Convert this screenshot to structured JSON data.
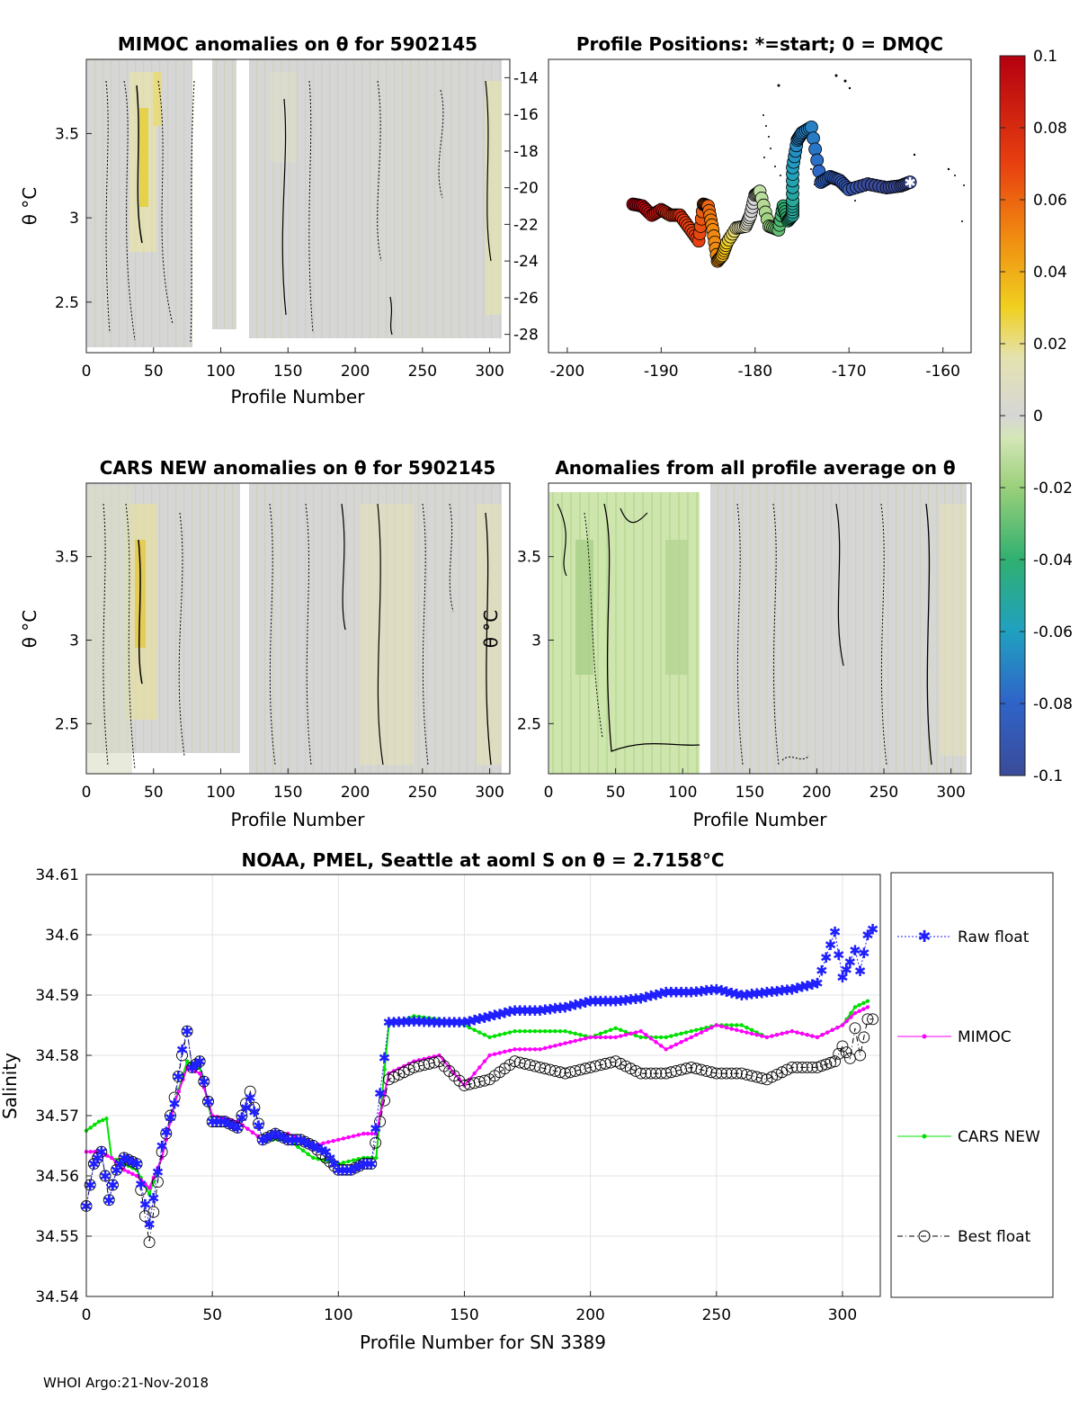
{
  "colorbar": {
    "ticks": [
      "0.1",
      "0.08",
      "0.06",
      "0.04",
      "0.02",
      "0",
      "-0.02",
      "-0.04",
      "-0.06",
      "-0.08",
      "-0.1"
    ],
    "range": [
      -0.1,
      0.1
    ]
  },
  "panels": {
    "mimoc": {
      "title": "MIMOC anomalies on θ  for 5902145",
      "xlabel": "Profile Number",
      "ylabel": "θ °C",
      "xticks": [
        "0",
        "50",
        "100",
        "150",
        "200",
        "250",
        "300"
      ],
      "yticks": [
        "3.5",
        "3",
        "2.5"
      ]
    },
    "positions": {
      "title": "Profile Positions: *=start; 0 = DMQC",
      "xticks": [
        "-200",
        "-190",
        "-180",
        "-170",
        "-160"
      ],
      "yticks": [
        "-14",
        "-16",
        "-18",
        "-20",
        "-22",
        "-24",
        "-26",
        "-28"
      ]
    },
    "cars": {
      "title": "CARS NEW anomalies on θ for 5902145",
      "xlabel": "Profile Number",
      "ylabel": "θ °C",
      "xticks": [
        "0",
        "50",
        "100",
        "150",
        "200",
        "250",
        "300"
      ],
      "yticks": [
        "3.5",
        "3",
        "2.5"
      ]
    },
    "allavg": {
      "title": "Anomalies from all profile average on θ",
      "xlabel": "Profile Number",
      "ylabel": "θ °C",
      "xticks": [
        "0",
        "50",
        "100",
        "150",
        "200",
        "250",
        "300"
      ],
      "yticks": [
        "3.5",
        "3",
        "2.5"
      ]
    },
    "salinity": {
      "title": "NOAA, PMEL, Seattle at aoml S on θ = 2.7158°C",
      "xlabel": "Profile Number for SN 3389",
      "ylabel": "Salinity",
      "xticks": [
        "0",
        "50",
        "100",
        "150",
        "200",
        "250",
        "300"
      ],
      "yticks": [
        "34.61",
        "34.6",
        "34.59",
        "34.58",
        "34.57",
        "34.56",
        "34.55",
        "34.54"
      ]
    }
  },
  "legend": {
    "raw": "Raw float",
    "mimoc": "MIMOC",
    "cars": "CARS NEW",
    "best": "Best float"
  },
  "colors": {
    "raw": "#1f1fff",
    "mimoc": "#ff00ff",
    "cars": "#00e000",
    "best": "#000000"
  },
  "footer": "WHOI Argo:21-Nov-2018",
  "chart_data": [
    {
      "type": "line",
      "title": "NOAA, PMEL, Seattle at aoml S on θ = 2.7158°C",
      "xlabel": "Profile Number for SN 3389",
      "ylabel": "Salinity",
      "xlim": [
        0,
        315
      ],
      "ylim": [
        34.54,
        34.61
      ],
      "grid": true,
      "legend_position": "right",
      "series": [
        {
          "name": "Raw float",
          "x": [
            0,
            3,
            6,
            9,
            12,
            15,
            20,
            25,
            30,
            35,
            38,
            40,
            42,
            45,
            50,
            55,
            60,
            65,
            70,
            75,
            80,
            85,
            90,
            95,
            100,
            105,
            110,
            113,
            120,
            130,
            140,
            150,
            160,
            170,
            180,
            190,
            200,
            210,
            220,
            230,
            240,
            250,
            260,
            270,
            280,
            290,
            297,
            300,
            303,
            305,
            307,
            310,
            312
          ],
          "y": [
            34.555,
            34.562,
            34.564,
            34.556,
            34.561,
            34.563,
            34.562,
            34.552,
            34.565,
            34.572,
            34.581,
            34.584,
            34.578,
            34.579,
            34.569,
            34.569,
            34.568,
            34.573,
            34.566,
            34.567,
            34.566,
            34.566,
            34.565,
            34.564,
            34.561,
            34.561,
            34.562,
            34.562,
            34.5855,
            34.5857,
            34.5855,
            34.5855,
            34.5865,
            34.5875,
            34.5875,
            34.588,
            34.589,
            34.589,
            34.5895,
            34.5905,
            34.5905,
            34.591,
            34.59,
            34.5905,
            34.591,
            34.592,
            34.6005,
            34.593,
            34.5955,
            34.5975,
            34.594,
            34.6,
            34.601
          ]
        },
        {
          "name": "MIMOC",
          "x": [
            0,
            5,
            10,
            15,
            20,
            25,
            30,
            35,
            40,
            45,
            50,
            60,
            70,
            80,
            90,
            100,
            110,
            115,
            120,
            130,
            140,
            150,
            160,
            170,
            180,
            190,
            200,
            210,
            220,
            230,
            240,
            250,
            260,
            270,
            280,
            290,
            300,
            305,
            310
          ],
          "y": [
            34.564,
            34.564,
            34.563,
            34.561,
            34.56,
            34.558,
            34.563,
            34.572,
            34.578,
            34.577,
            34.57,
            34.569,
            34.566,
            34.567,
            34.565,
            34.566,
            34.567,
            34.567,
            34.577,
            34.579,
            34.58,
            34.575,
            34.58,
            34.581,
            34.581,
            34.582,
            34.583,
            34.583,
            34.584,
            34.581,
            34.583,
            34.585,
            34.584,
            34.583,
            34.584,
            34.583,
            34.585,
            34.587,
            34.588
          ]
        },
        {
          "name": "CARS NEW",
          "x": [
            0,
            5,
            8,
            10,
            15,
            20,
            25,
            30,
            35,
            40,
            45,
            50,
            60,
            70,
            80,
            90,
            100,
            110,
            115,
            120,
            130,
            140,
            150,
            160,
            170,
            180,
            190,
            200,
            210,
            220,
            230,
            240,
            250,
            260,
            270,
            280,
            290,
            300,
            305,
            310
          ],
          "y": [
            34.5675,
            34.569,
            34.5695,
            34.563,
            34.562,
            34.561,
            34.557,
            34.563,
            34.572,
            34.579,
            34.578,
            34.569,
            34.569,
            34.566,
            34.566,
            34.563,
            34.562,
            34.563,
            34.563,
            34.585,
            34.5865,
            34.586,
            34.585,
            34.583,
            34.584,
            34.584,
            34.584,
            34.583,
            34.5845,
            34.583,
            34.583,
            34.584,
            34.585,
            34.585,
            34.583,
            34.584,
            34.583,
            34.585,
            34.588,
            34.589
          ]
        },
        {
          "name": "Best float",
          "x": [
            0,
            3,
            6,
            9,
            12,
            15,
            20,
            25,
            30,
            35,
            38,
            40,
            42,
            45,
            50,
            55,
            60,
            65,
            70,
            75,
            80,
            85,
            90,
            95,
            100,
            105,
            110,
            113,
            120,
            130,
            140,
            150,
            160,
            170,
            180,
            190,
            200,
            210,
            220,
            230,
            240,
            250,
            260,
            270,
            280,
            290,
            297,
            300,
            303,
            305,
            307,
            310,
            312
          ],
          "y": [
            34.555,
            34.562,
            34.564,
            34.556,
            34.561,
            34.563,
            34.562,
            34.549,
            34.564,
            34.573,
            34.58,
            34.584,
            34.578,
            34.579,
            34.569,
            34.569,
            34.568,
            34.574,
            34.566,
            34.567,
            34.566,
            34.566,
            34.565,
            34.563,
            34.561,
            34.561,
            34.562,
            34.562,
            34.576,
            34.578,
            34.579,
            34.575,
            34.576,
            34.579,
            34.578,
            34.577,
            34.578,
            34.579,
            34.577,
            34.577,
            34.578,
            34.577,
            34.577,
            34.576,
            34.578,
            34.578,
            34.579,
            34.5815,
            34.5795,
            34.5845,
            34.58,
            34.586,
            34.586
          ]
        }
      ]
    },
    {
      "type": "scatter",
      "title": "Profile Positions: *=start; 0 = DMQC",
      "xlim": [
        -202,
        -157
      ],
      "ylim": [
        -29,
        -13
      ],
      "series": [
        {
          "name": "track",
          "lon": [
            -163.5,
            -164.5,
            -166,
            -168,
            -170,
            -171,
            -172,
            -173,
            -174,
            -175,
            -175.5,
            -176,
            -176,
            -176,
            -176.5,
            -177,
            -177.5,
            -178.5,
            -179.5,
            -180,
            -180.5,
            -181,
            -182,
            -183,
            -183.5,
            -184,
            -184.5,
            -185,
            -185.5,
            -186,
            -187,
            -188,
            -189,
            -190,
            -191,
            -192,
            -193
          ],
          "lat": [
            -19.7,
            -19.9,
            -20.0,
            -19.8,
            -20.1,
            -19.6,
            -19.4,
            -19.7,
            -16.7,
            -17.0,
            -17.4,
            -18.9,
            -20.7,
            -21.5,
            -21.8,
            -21.0,
            -22.3,
            -22.1,
            -20.2,
            -20.4,
            -21.5,
            -22.1,
            -22.2,
            -23.0,
            -23.7,
            -24.0,
            -22.3,
            -21.0,
            -20.9,
            -22.9,
            -22.2,
            -21.5,
            -21.5,
            -21.2,
            -21.5,
            -21.0,
            -20.9
          ],
          "anomaly": [
            -0.1,
            -0.1,
            -0.1,
            -0.1,
            -0.09,
            -0.09,
            -0.08,
            -0.08,
            -0.07,
            -0.07,
            -0.07,
            -0.06,
            -0.05,
            -0.05,
            -0.04,
            -0.04,
            -0.03,
            -0.02,
            -0.01,
            0,
            0,
            0.01,
            0.02,
            0.03,
            0.04,
            0.05,
            0.05,
            0.06,
            0.06,
            0.07,
            0.07,
            0.08,
            0.08,
            0.09,
            0.09,
            0.1,
            0.1
          ]
        }
      ]
    }
  ]
}
